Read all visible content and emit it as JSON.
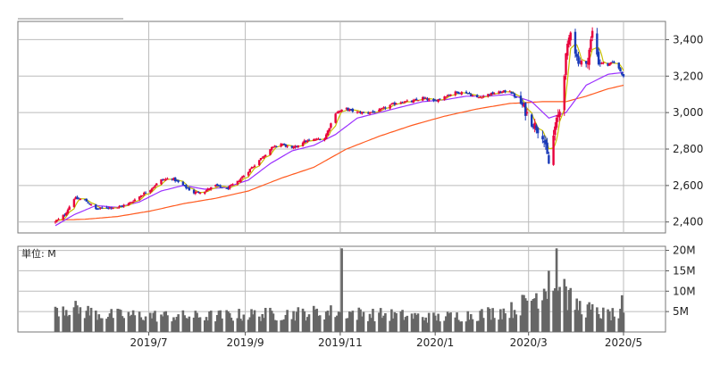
{
  "chart_data": [
    {
      "type": "candlestick",
      "panel": "price",
      "ylim": [
        2340,
        3500
      ],
      "yticks": [
        {
          "value": 2400,
          "label": "2,400"
        },
        {
          "value": 2600,
          "label": "2,600"
        },
        {
          "value": 2800,
          "label": "2,800"
        },
        {
          "value": 3000,
          "label": "3,000"
        },
        {
          "value": 3200,
          "label": "3,200"
        },
        {
          "value": 3400,
          "label": "3,400"
        }
      ],
      "x_range": [
        "2019-05-01",
        "2020-04-30"
      ],
      "close_path": [
        [
          "2019-05-01",
          2400
        ],
        [
          "2019-05-07",
          2440
        ],
        [
          "2019-05-13",
          2530
        ],
        [
          "2019-05-20",
          2520
        ],
        [
          "2019-05-27",
          2470
        ],
        [
          "2019-06-03",
          2480
        ],
        [
          "2019-06-10",
          2480
        ],
        [
          "2019-06-17",
          2500
        ],
        [
          "2019-06-24",
          2540
        ],
        [
          "2019-07-01",
          2580
        ],
        [
          "2019-07-08",
          2630
        ],
        [
          "2019-07-15",
          2640
        ],
        [
          "2019-07-22",
          2600
        ],
        [
          "2019-07-29",
          2560
        ],
        [
          "2019-08-05",
          2570
        ],
        [
          "2019-08-12",
          2600
        ],
        [
          "2019-08-19",
          2580
        ],
        [
          "2019-08-26",
          2620
        ],
        [
          "2019-09-02",
          2680
        ],
        [
          "2019-09-09",
          2740
        ],
        [
          "2019-09-16",
          2800
        ],
        [
          "2019-09-23",
          2830
        ],
        [
          "2019-09-30",
          2800
        ],
        [
          "2019-10-07",
          2840
        ],
        [
          "2019-10-14",
          2850
        ],
        [
          "2019-10-21",
          2860
        ],
        [
          "2019-10-28",
          3000
        ],
        [
          "2019-11-04",
          3020
        ],
        [
          "2019-11-11",
          3000
        ],
        [
          "2019-11-18",
          3000
        ],
        [
          "2019-11-25",
          3010
        ],
        [
          "2019-12-02",
          3040
        ],
        [
          "2019-12-09",
          3060
        ],
        [
          "2019-12-16",
          3060
        ],
        [
          "2019-12-23",
          3080
        ],
        [
          "2019-12-30",
          3060
        ],
        [
          "2020-01-06",
          3090
        ],
        [
          "2020-01-13",
          3110
        ],
        [
          "2020-01-20",
          3110
        ],
        [
          "2020-01-27",
          3080
        ],
        [
          "2020-02-03",
          3100
        ],
        [
          "2020-02-10",
          3110
        ],
        [
          "2020-02-17",
          3120
        ],
        [
          "2020-02-24",
          3050
        ],
        [
          "2020-03-02",
          2950
        ],
        [
          "2020-03-09",
          2880
        ],
        [
          "2020-03-13",
          2720
        ],
        [
          "2020-03-17",
          2920
        ],
        [
          "2020-03-20",
          3010
        ],
        [
          "2020-03-24",
          3300
        ],
        [
          "2020-03-27",
          3460
        ],
        [
          "2020-03-31",
          3300
        ],
        [
          "2020-04-06",
          3250
        ],
        [
          "2020-04-10",
          3440
        ],
        [
          "2020-04-14",
          3280
        ],
        [
          "2020-04-20",
          3260
        ],
        [
          "2020-04-24",
          3280
        ],
        [
          "2020-04-30",
          3200
        ]
      ],
      "ma_short_path": [
        [
          "2019-05-01",
          2380
        ],
        [
          "2019-05-13",
          2440
        ],
        [
          "2019-05-27",
          2490
        ],
        [
          "2019-06-10",
          2480
        ],
        [
          "2019-06-24",
          2510
        ],
        [
          "2019-07-08",
          2570
        ],
        [
          "2019-07-22",
          2600
        ],
        [
          "2019-08-05",
          2580
        ],
        [
          "2019-08-19",
          2590
        ],
        [
          "2019-09-02",
          2630
        ],
        [
          "2019-09-16",
          2720
        ],
        [
          "2019-09-30",
          2790
        ],
        [
          "2019-10-14",
          2820
        ],
        [
          "2019-10-28",
          2880
        ],
        [
          "2019-11-11",
          2970
        ],
        [
          "2019-11-25",
          3000
        ],
        [
          "2019-12-09",
          3030
        ],
        [
          "2019-12-23",
          3060
        ],
        [
          "2020-01-06",
          3070
        ],
        [
          "2020-01-20",
          3090
        ],
        [
          "2020-02-03",
          3090
        ],
        [
          "2020-02-17",
          3100
        ],
        [
          "2020-03-02",
          3060
        ],
        [
          "2020-03-13",
          2970
        ],
        [
          "2020-03-24",
          3000
        ],
        [
          "2020-04-06",
          3150
        ],
        [
          "2020-04-20",
          3210
        ],
        [
          "2020-04-30",
          3220
        ]
      ],
      "ma_long_path": [
        [
          "2019-05-01",
          2410
        ],
        [
          "2019-05-20",
          2415
        ],
        [
          "2019-06-10",
          2430
        ],
        [
          "2019-07-01",
          2460
        ],
        [
          "2019-07-22",
          2500
        ],
        [
          "2019-08-12",
          2530
        ],
        [
          "2019-09-02",
          2570
        ],
        [
          "2019-09-23",
          2640
        ],
        [
          "2019-10-14",
          2700
        ],
        [
          "2019-11-04",
          2800
        ],
        [
          "2019-11-25",
          2870
        ],
        [
          "2019-12-16",
          2930
        ],
        [
          "2020-01-06",
          2980
        ],
        [
          "2020-01-27",
          3020
        ],
        [
          "2020-02-17",
          3050
        ],
        [
          "2020-03-09",
          3060
        ],
        [
          "2020-03-24",
          3060
        ],
        [
          "2020-04-06",
          3090
        ],
        [
          "2020-04-20",
          3130
        ],
        [
          "2020-04-30",
          3150
        ]
      ],
      "colors": {
        "up": "#e8003c",
        "down": "#1a3ab8",
        "ma_short": "#c8c000",
        "ma_mid": "#9b30ff",
        "ma_long": "#ff5a1f"
      }
    },
    {
      "type": "bar",
      "panel": "volume",
      "unit_label": "単位: M",
      "ylim": [
        0,
        21
      ],
      "yticks": [
        {
          "value": 5,
          "label": "5M"
        },
        {
          "value": 10,
          "label": "10M"
        },
        {
          "value": 15,
          "label": "15M"
        },
        {
          "value": 20,
          "label": "20M"
        }
      ],
      "x_range": [
        "2019-05-01",
        "2020-04-30"
      ],
      "volume_profile": [
        [
          "2019-05-01",
          6.5
        ],
        [
          "2019-05-15",
          5.5
        ],
        [
          "2019-06-01",
          4.2
        ],
        [
          "2019-07-01",
          4.0
        ],
        [
          "2019-08-01",
          3.8
        ],
        [
          "2019-09-01",
          4.2
        ],
        [
          "2019-10-01",
          4.5
        ],
        [
          "2019-11-01",
          5.0
        ],
        [
          "2019-11-11",
          4.5
        ],
        [
          "2019-12-01",
          4.2
        ],
        [
          "2020-01-01",
          3.5
        ],
        [
          "2020-02-01",
          4.5
        ],
        [
          "2020-02-20",
          5.5
        ],
        [
          "2020-03-05",
          9.0
        ],
        [
          "2020-03-13",
          12.0
        ],
        [
          "2020-03-20",
          10.0
        ],
        [
          "2020-03-31",
          6.5
        ],
        [
          "2020-04-15",
          4.5
        ],
        [
          "2020-04-30",
          4.0
        ]
      ],
      "spikes": [
        [
          "2019-11-01",
          20.5
        ],
        [
          "2020-03-13",
          15.0
        ],
        [
          "2020-03-18",
          20.5
        ],
        [
          "2020-03-23",
          13.0
        ],
        [
          "2020-04-29",
          9.0
        ]
      ],
      "bar_color": "#666666"
    }
  ],
  "x_ticks": [
    {
      "date": "2019-06-30",
      "label": "2019/7"
    },
    {
      "date": "2019-08-31",
      "label": "2019/9"
    },
    {
      "date": "2019-10-31",
      "label": "2019/11"
    },
    {
      "date": "2019-12-31",
      "label": "2020/1"
    },
    {
      "date": "2020-02-29",
      "label": "2020/3"
    },
    {
      "date": "2020-04-30",
      "label": "2020/5"
    }
  ]
}
